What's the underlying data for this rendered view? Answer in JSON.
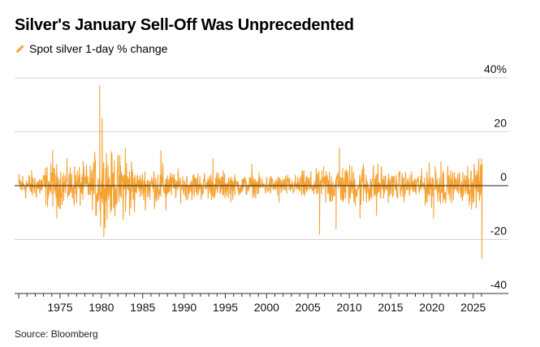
{
  "chart_data": {
    "type": "line",
    "title": "Silver's January Sell-Off Was Unprecedented",
    "series": [
      {
        "name": "Spot silver 1-day % change",
        "color": "#f5a233",
        "x_range": [
          1970,
          2026.1
        ],
        "baseline_amplitude": 2.5,
        "highlights": [
          {
            "x": 1974.1,
            "y": 13
          },
          {
            "x": 1974.6,
            "y": -12
          },
          {
            "x": 1979.4,
            "y": -11
          },
          {
            "x": 1979.8,
            "y": 37
          },
          {
            "x": 1979.9,
            "y": -15
          },
          {
            "x": 1980.1,
            "y": 25
          },
          {
            "x": 1980.3,
            "y": -19
          },
          {
            "x": 1980.6,
            "y": 12
          },
          {
            "x": 1981.1,
            "y": -10
          },
          {
            "x": 1982.9,
            "y": 14
          },
          {
            "x": 1983.4,
            "y": -11
          },
          {
            "x": 1987.2,
            "y": 13
          },
          {
            "x": 1987.8,
            "y": -9
          },
          {
            "x": 1993.5,
            "y": 10
          },
          {
            "x": 1998.2,
            "y": 8
          },
          {
            "x": 2001.5,
            "y": -6
          },
          {
            "x": 2006.4,
            "y": -18
          },
          {
            "x": 2006.9,
            "y": 7
          },
          {
            "x": 2008.4,
            "y": -16
          },
          {
            "x": 2008.8,
            "y": 14
          },
          {
            "x": 2011.3,
            "y": -12
          },
          {
            "x": 2011.7,
            "y": 8
          },
          {
            "x": 2013.3,
            "y": -11
          },
          {
            "x": 2020.2,
            "y": -12
          },
          {
            "x": 2020.4,
            "y": 7
          },
          {
            "x": 2021.1,
            "y": 9
          },
          {
            "x": 2025.1,
            "y": 8
          },
          {
            "x": 2026.0,
            "y": 10
          },
          {
            "x": 2026.05,
            "y": -27
          },
          {
            "x": 2026.08,
            "y": 8
          }
        ]
      }
    ],
    "x_ticks": [
      "1975",
      "1980",
      "1985",
      "1990",
      "1995",
      "2000",
      "2005",
      "2010",
      "2015",
      "2020",
      "2025"
    ],
    "x_tick_values": [
      1975,
      1980,
      1985,
      1990,
      1995,
      2000,
      2005,
      2010,
      2015,
      2020,
      2025
    ],
    "y_ticks": [
      "40%",
      "20",
      "0",
      "-20",
      "-40"
    ],
    "y_tick_values": [
      40,
      20,
      0,
      -20,
      -40
    ],
    "xlim": [
      1969.5,
      2026.5
    ],
    "ylim": [
      -40,
      40
    ],
    "grid": true,
    "legend_position": "top-left",
    "source": "Source: Bloomberg"
  }
}
